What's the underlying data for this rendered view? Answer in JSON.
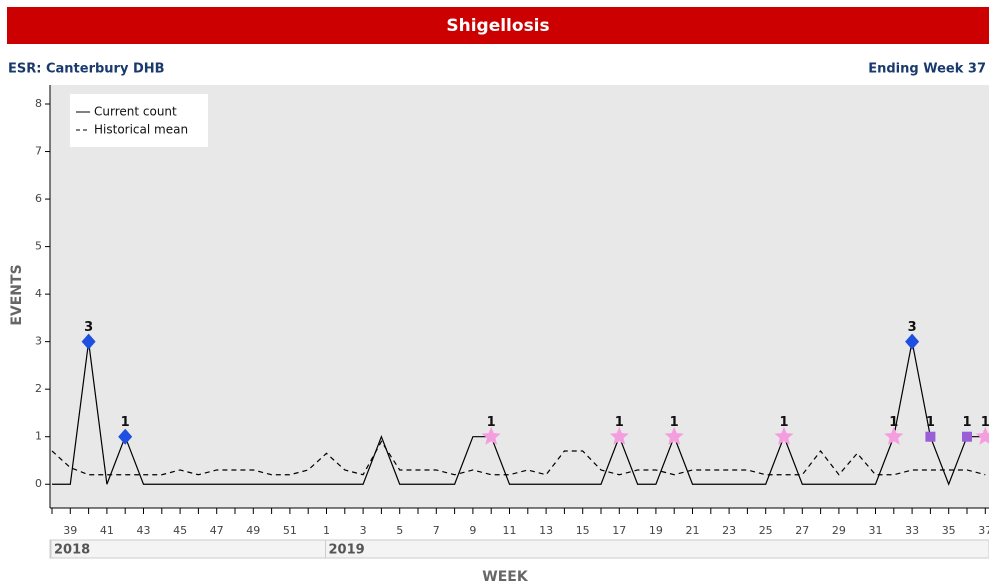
{
  "chart_data": {
    "type": "line",
    "title": "Shigellosis",
    "subtitle_left": "ESR: Canterbury DHB",
    "subtitle_right": "Ending Week 37",
    "y_label": "EVENTS",
    "x_label": "WEEK",
    "categories": [
      null,
      "39",
      null,
      "41",
      null,
      "43",
      null,
      "45",
      null,
      "47",
      null,
      "49",
      null,
      "51",
      null,
      "1",
      null,
      "3",
      null,
      "5",
      null,
      "7",
      null,
      "9",
      null,
      "11",
      null,
      "13",
      null,
      "15",
      null,
      "17",
      null,
      "19",
      null,
      "21",
      null,
      "23",
      null,
      "25",
      null,
      "27",
      null,
      "29",
      null,
      "31",
      null,
      "33",
      null,
      "35",
      null,
      "37"
    ],
    "x_groups": [
      {
        "label": "2018",
        "count": 15
      },
      {
        "label": "2019",
        "count": 37
      }
    ],
    "ylim": [
      -0.5,
      8.4
    ],
    "yticks": [
      0,
      1,
      2,
      3,
      4,
      5,
      6,
      7,
      8
    ],
    "marker_colors": {
      "diamond": "#1f4fe0",
      "star": "#f49ee0",
      "square": "#9a5fd6"
    },
    "legend": "upper left",
    "series": [
      {
        "name": "Current count",
        "color": "#000000",
        "dashed": false,
        "values": [
          0,
          0,
          3,
          0,
          1,
          0,
          0,
          0,
          0,
          0,
          0,
          0,
          0,
          0,
          0,
          0,
          0,
          0,
          1,
          0,
          0,
          0,
          0,
          1,
          1,
          0,
          0,
          0,
          0,
          0,
          0,
          1,
          0,
          0,
          1,
          0,
          0,
          0,
          0,
          0,
          1,
          0,
          0,
          0,
          0,
          0,
          1,
          3,
          1,
          0,
          1,
          1
        ],
        "markers": [
          null,
          null,
          "diamond",
          null,
          "diamond",
          null,
          null,
          null,
          null,
          null,
          null,
          null,
          null,
          null,
          null,
          null,
          null,
          null,
          null,
          null,
          null,
          null,
          null,
          null,
          "star",
          null,
          null,
          null,
          null,
          null,
          null,
          "star",
          null,
          null,
          "star",
          null,
          null,
          null,
          null,
          null,
          "star",
          null,
          null,
          null,
          null,
          null,
          "star",
          "diamond",
          "square",
          null,
          "square",
          "star"
        ]
      },
      {
        "name": "Historical mean",
        "color": "#000000",
        "dashed": true,
        "values": [
          0.7,
          0.35,
          0.2,
          0.2,
          0.2,
          0.2,
          0.2,
          0.3,
          0.2,
          0.3,
          0.3,
          0.3,
          0.2,
          0.2,
          0.3,
          0.65,
          0.3,
          0.2,
          0.9,
          0.3,
          0.3,
          0.3,
          0.2,
          0.3,
          0.2,
          0.2,
          0.3,
          0.2,
          0.7,
          0.7,
          0.3,
          0.2,
          0.3,
          0.3,
          0.2,
          0.3,
          0.3,
          0.3,
          0.3,
          0.2,
          0.2,
          0.2,
          0.7,
          0.2,
          0.65,
          0.2,
          0.2,
          0.3,
          0.3,
          0.3,
          0.3,
          0.2
        ]
      }
    ]
  }
}
